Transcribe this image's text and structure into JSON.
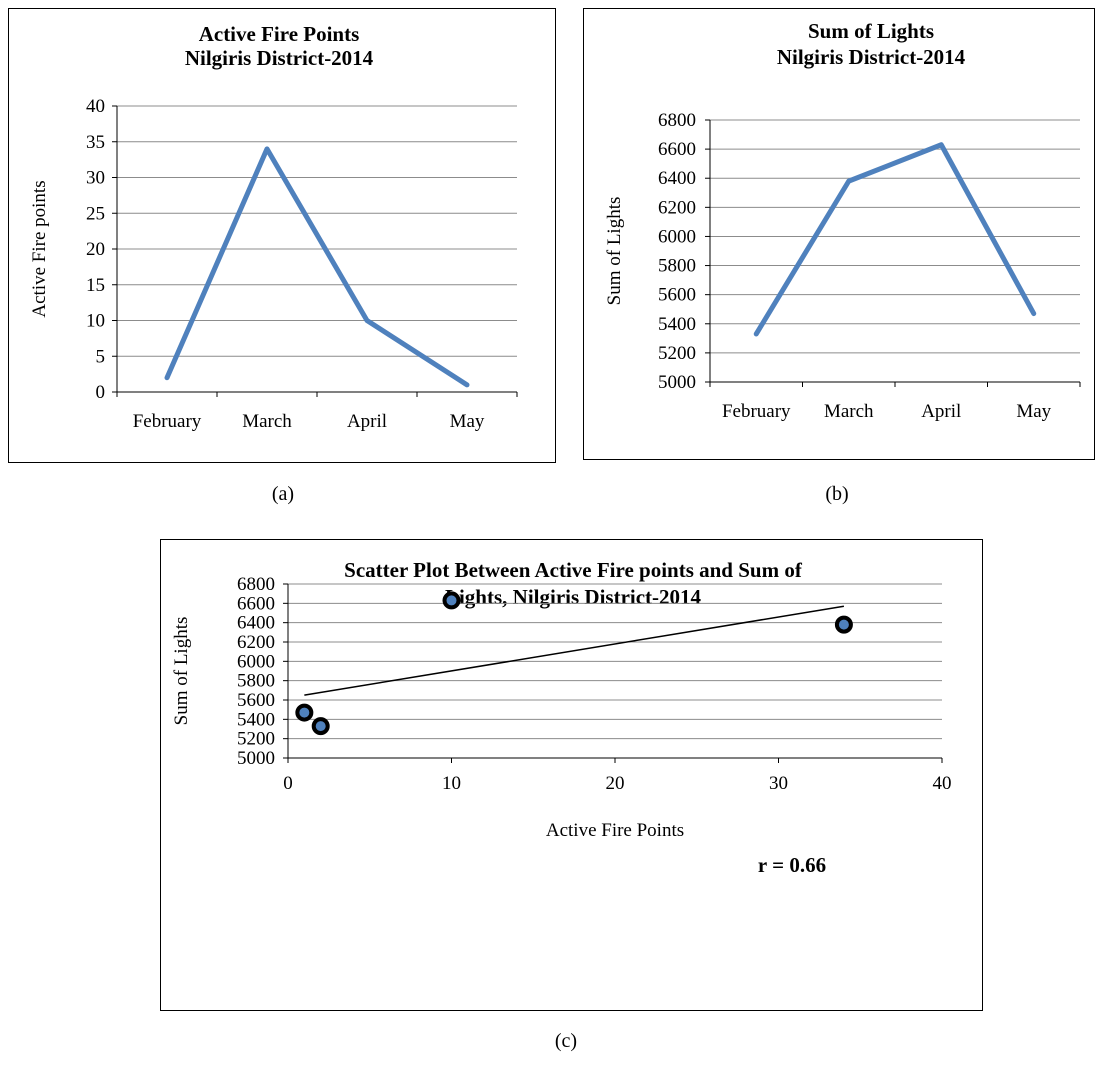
{
  "captions": {
    "a": "(a)",
    "b": "(b)",
    "c": "(c)"
  },
  "chart_data": [
    {
      "id": "a",
      "type": "line",
      "title": [
        "Active Fire Points",
        "Nilgiris District-2014"
      ],
      "xlabel": "",
      "ylabel": "Active Fire points",
      "categories": [
        "February",
        "March",
        "April",
        "May"
      ],
      "series": [
        {
          "values": [
            2,
            34,
            10,
            1
          ],
          "color": "#4f81bd"
        }
      ],
      "ylim": [
        0,
        40
      ],
      "yticks": [
        "0",
        "5",
        "10",
        "15",
        "20",
        "25",
        "30",
        "35",
        "40"
      ],
      "grid": true
    },
    {
      "id": "b",
      "type": "line",
      "title": [
        "Sum of Lights",
        "Nilgiris District-2014"
      ],
      "xlabel": "",
      "ylabel": "Sum of Lights",
      "categories": [
        "February",
        "March",
        "April",
        "May"
      ],
      "series": [
        {
          "values": [
            5330,
            6380,
            6630,
            5470
          ],
          "color": "#4f81bd"
        }
      ],
      "ylim": [
        5000,
        6800
      ],
      "yticks": [
        "5000",
        "5200",
        "5400",
        "5600",
        "5800",
        "6000",
        "6200",
        "6400",
        "6600",
        "6800"
      ],
      "grid": true
    },
    {
      "id": "c",
      "type": "scatter",
      "title": [
        "Scatter Plot Between Active Fire points and Sum of",
        "Lights, Nilgiris District-2014"
      ],
      "xlabel": "Active Fire Points",
      "ylabel": "Sum of Lights",
      "points": [
        {
          "x": 1,
          "y": 5470
        },
        {
          "x": 2,
          "y": 5330
        },
        {
          "x": 10,
          "y": 6630
        },
        {
          "x": 34,
          "y": 6380
        }
      ],
      "trendline": {
        "x": [
          1,
          34
        ],
        "y": [
          5650,
          6570
        ]
      },
      "annotation": "r = 0.66",
      "xlim": [
        0,
        40
      ],
      "xticks": [
        "0",
        "10",
        "20",
        "30",
        "40"
      ],
      "ylim": [
        5000,
        6800
      ],
      "yticks": [
        "5000",
        "5200",
        "5400",
        "5600",
        "5800",
        "6000",
        "6200",
        "6400",
        "6600",
        "6800"
      ],
      "grid": true,
      "marker_color": "#4f81bd"
    }
  ]
}
